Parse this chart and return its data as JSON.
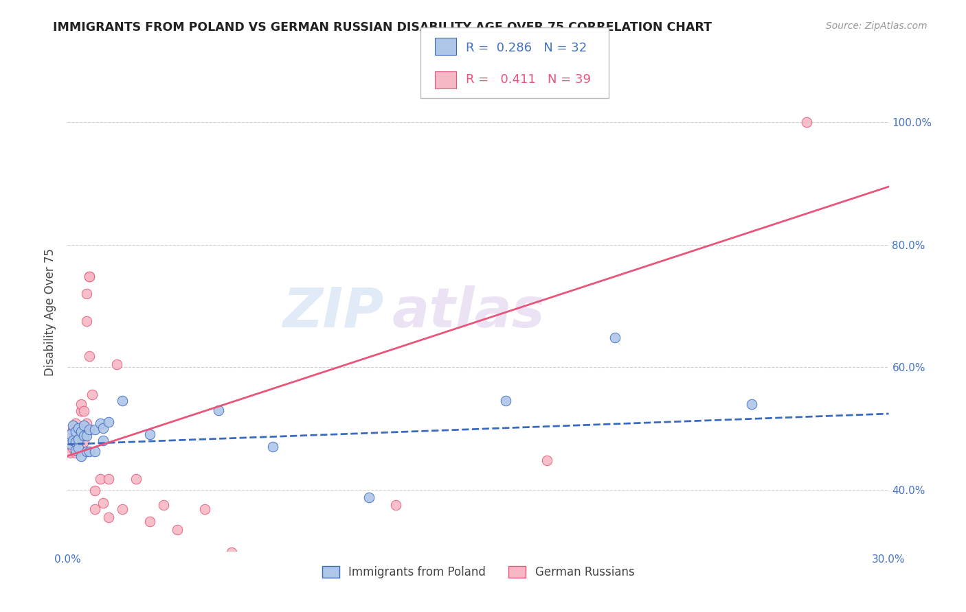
{
  "title": "IMMIGRANTS FROM POLAND VS GERMAN RUSSIAN DISABILITY AGE OVER 75 CORRELATION CHART",
  "source": "Source: ZipAtlas.com",
  "ylabel_label": "Disability Age Over 75",
  "x_tick_labels": [
    "0.0%",
    "",
    "",
    "",
    "",
    "",
    "",
    "",
    "",
    "",
    "",
    "",
    ""
  ],
  "y_tick_labels": [
    "40.0%",
    "60.0%",
    "80.0%",
    "100.0%"
  ],
  "x_range": [
    0.0,
    0.3
  ],
  "y_range": [
    0.3,
    1.08
  ],
  "blue_R": "0.286",
  "blue_N": "32",
  "pink_R": "0.411",
  "pink_N": "39",
  "blue_color": "#aec6e8",
  "blue_line_color": "#3a6abf",
  "pink_color": "#f5b8c4",
  "pink_line_color": "#e8547a",
  "watermark_zip": "ZIP",
  "watermark_atlas": "atlas",
  "legend_label_blue": "Immigrants from Poland",
  "legend_label_pink": "German Russians",
  "blue_line": [
    0.0,
    0.474,
    0.3,
    0.524
  ],
  "pink_line": [
    0.0,
    0.455,
    0.3,
    0.895
  ],
  "blue_x": [
    0.001,
    0.001,
    0.002,
    0.002,
    0.003,
    0.003,
    0.003,
    0.004,
    0.004,
    0.004,
    0.005,
    0.005,
    0.006,
    0.006,
    0.007,
    0.007,
    0.008,
    0.008,
    0.01,
    0.01,
    0.012,
    0.013,
    0.013,
    0.015,
    0.02,
    0.03,
    0.055,
    0.075,
    0.11,
    0.16,
    0.2,
    0.25
  ],
  "blue_y": [
    0.49,
    0.475,
    0.505,
    0.48,
    0.495,
    0.465,
    0.478,
    0.5,
    0.482,
    0.468,
    0.495,
    0.455,
    0.488,
    0.505,
    0.488,
    0.462,
    0.498,
    0.462,
    0.462,
    0.498,
    0.508,
    0.5,
    0.48,
    0.51,
    0.545,
    0.49,
    0.53,
    0.47,
    0.387,
    0.545,
    0.648,
    0.54
  ],
  "pink_x": [
    0.001,
    0.001,
    0.002,
    0.002,
    0.003,
    0.003,
    0.003,
    0.004,
    0.004,
    0.005,
    0.005,
    0.005,
    0.006,
    0.006,
    0.006,
    0.007,
    0.007,
    0.007,
    0.008,
    0.008,
    0.008,
    0.009,
    0.01,
    0.01,
    0.012,
    0.013,
    0.015,
    0.015,
    0.018,
    0.02,
    0.025,
    0.03,
    0.035,
    0.04,
    0.05,
    0.06,
    0.12,
    0.175,
    0.27
  ],
  "pink_y": [
    0.49,
    0.46,
    0.498,
    0.468,
    0.508,
    0.488,
    0.46,
    0.498,
    0.478,
    0.528,
    0.498,
    0.54,
    0.478,
    0.528,
    0.498,
    0.508,
    0.675,
    0.72,
    0.748,
    0.748,
    0.618,
    0.555,
    0.398,
    0.368,
    0.418,
    0.378,
    0.418,
    0.355,
    0.605,
    0.368,
    0.418,
    0.348,
    0.375,
    0.335,
    0.368,
    0.298,
    0.375,
    0.448,
    1.0
  ]
}
